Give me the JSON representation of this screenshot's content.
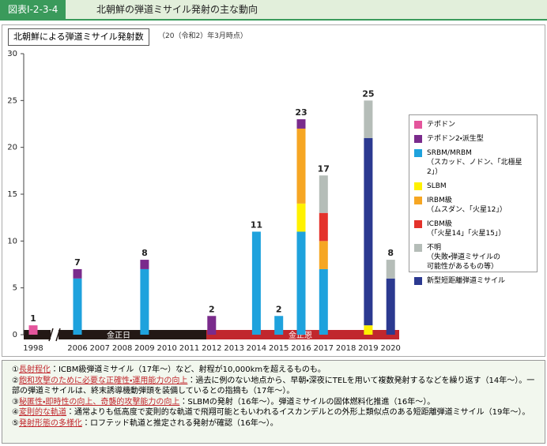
{
  "header": {
    "figure_number": "図表Ⅰ-2-3-4",
    "title": "北朝鮮の弾道ミサイル発射の主な動向"
  },
  "chart_data": {
    "type": "stacked_bar",
    "title": "北朝鮮による弾道ミサイル発射数",
    "subtitle": "（20（令和2）年3月時点）",
    "categories": [
      "1998",
      "2006",
      "2007",
      "2008",
      "2009",
      "2010",
      "2011",
      "2012",
      "2013",
      "2014",
      "2015",
      "2016",
      "2017",
      "2018",
      "2019",
      "2020"
    ],
    "series": [
      {
        "name": "テポドン",
        "color": "#e4559c",
        "values": [
          1,
          null,
          null,
          null,
          null,
          null,
          null,
          null,
          null,
          null,
          null,
          null,
          null,
          null,
          null,
          null
        ]
      },
      {
        "name": "テポドン2・派生型",
        "color": "#7a2b8c",
        "values": [
          null,
          1,
          null,
          null,
          1,
          null,
          null,
          2,
          null,
          null,
          null,
          1,
          null,
          null,
          null,
          null
        ]
      },
      {
        "name": "SRBM/MRBM\n（スカッド、ノドン、「北極星2」）",
        "color": "#1ea2dd",
        "values": [
          null,
          6,
          null,
          null,
          7,
          null,
          null,
          null,
          null,
          11,
          2,
          11,
          7,
          null,
          null,
          null
        ]
      },
      {
        "name": "SLBM",
        "color": "#fff100",
        "values": [
          null,
          null,
          null,
          null,
          null,
          null,
          null,
          null,
          null,
          null,
          null,
          3,
          null,
          null,
          1,
          null
        ]
      },
      {
        "name": "IRBM級\n（ムスダン、「火星12」）",
        "color": "#f6a623",
        "values": [
          null,
          null,
          null,
          null,
          null,
          null,
          null,
          null,
          null,
          null,
          null,
          8,
          3,
          null,
          null,
          null
        ]
      },
      {
        "name": "ICBM級\n（「火星14」「火星15」）",
        "color": "#e4322b",
        "values": [
          null,
          null,
          null,
          null,
          null,
          null,
          null,
          null,
          null,
          null,
          null,
          null,
          3,
          null,
          null,
          null
        ]
      },
      {
        "name": "不明\n（失敗・弾道ミサイルの\n可能性があるもの等）",
        "color": "#b5bdb8",
        "values": [
          null,
          null,
          null,
          null,
          null,
          null,
          null,
          null,
          null,
          null,
          null,
          null,
          4,
          null,
          4,
          2
        ]
      },
      {
        "name": "新型短距離弾道ミサイル",
        "color": "#2b3990",
        "values": [
          null,
          null,
          null,
          null,
          null,
          null,
          null,
          null,
          null,
          null,
          null,
          null,
          null,
          null,
          20,
          6
        ]
      }
    ],
    "totals": [
      1,
      7,
      null,
      null,
      8,
      null,
      null,
      2,
      null,
      11,
      2,
      23,
      17,
      null,
      25,
      8
    ],
    "ylim": [
      0,
      30
    ],
    "yticks": [
      0,
      5,
      10,
      15,
      20,
      25,
      30
    ],
    "eras": [
      {
        "label": "金正日",
        "color": "#231815"
      },
      {
        "label": "金正恩",
        "color": "#c1272d"
      }
    ]
  },
  "notes": [
    {
      "marker": "①",
      "keyword": "長射程化",
      "text": "：ICBM級弾道ミサイル（17年～）など、射程が10,000kmを超えるものも。"
    },
    {
      "marker": "②",
      "keyword": "飽和攻撃のために必要な正確性・運用能力の向上",
      "text": "：過去に例のない地点から、早朝・深夜にTELを用いて複数発射するなどを繰り返す（14年～）。一部の弾道ミサイルは、終末誘導機動弾頭を装備しているとの指摘も（17年～）。"
    },
    {
      "marker": "③",
      "keyword": "秘匿性・即時性の向上、奇襲的攻撃能力の向上",
      "text": "：SLBMの発射（16年～）。弾道ミサイルの固体燃料化推進（16年～）。"
    },
    {
      "marker": "④",
      "keyword": "変則的な軌道",
      "text": "：通常よりも低高度で変則的な軌道で飛翔可能ともいわれるイスカンデルとの外形上類似点のある短距離弾道ミサイル（19年～）。"
    },
    {
      "marker": "⑤",
      "keyword": "発射形態の多様化",
      "text": "：ロフテッド軌道と推定される発射が確認（16年～）。"
    }
  ]
}
